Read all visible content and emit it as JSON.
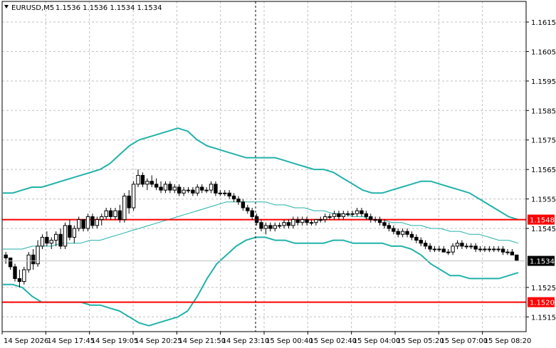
{
  "colors": {
    "background": "#ffffff",
    "grid": "#c0c0c0",
    "frame": "#000000",
    "bollinger": "#20b2aa",
    "hline": "#ff0000",
    "candle": "#000000",
    "current_price_bg": "#000000"
  },
  "header": {
    "symbol_timeframe": "EURUSD,M5",
    "ohlc": "1.1536 1.1536 1.1534 1.1534",
    "collapse_icon": "triangle-down-icon"
  },
  "chart_data": {
    "type": "candlestick",
    "symbol": "EURUSD",
    "timeframe": "M5",
    "ylim": [
      1.151,
      1.1622
    ],
    "y_ticks": [
      "1.1615",
      "1.1605",
      "1.1595",
      "1.1585",
      "1.1575",
      "1.1565",
      "1.1555",
      "1.1545",
      "1.1525",
      "1.1515"
    ],
    "x_ticks": [
      "14 Sep 2026",
      "14 Sep 17:45",
      "14 Sep 19:05",
      "14 Sep 20:25",
      "14 Sep 21:50",
      "14 Sep 23:10",
      "15 Sep 00:40",
      "15 Sep 02:40",
      "15 Sep 04:00",
      "15 Sep 05:20",
      "15 Sep 07:00",
      "15 Sep 08:20"
    ],
    "grid": true,
    "crosshair_x_index": 12,
    "horizontal_lines": [
      {
        "label": "1.1548",
        "value": 1.1548
      },
      {
        "label": "1.1520",
        "value": 1.152
      }
    ],
    "current_price": {
      "label": "1.1534",
      "value": 1.1534
    },
    "bollinger": {
      "upper": [
        1.1557,
        1.1557,
        1.1558,
        1.1559,
        1.1559,
        1.156,
        1.1561,
        1.1562,
        1.1563,
        1.1564,
        1.1565,
        1.1567,
        1.157,
        1.1573,
        1.1575,
        1.1576,
        1.1577,
        1.1578,
        1.1579,
        1.1578,
        1.1575,
        1.1573,
        1.1572,
        1.1571,
        1.157,
        1.1569,
        1.1569,
        1.1569,
        1.1569,
        1.1568,
        1.1567,
        1.1566,
        1.1565,
        1.1565,
        1.1564,
        1.1562,
        1.156,
        1.1558,
        1.1557,
        1.1557,
        1.1558,
        1.1559,
        1.156,
        1.1561,
        1.1561,
        1.156,
        1.1559,
        1.1558,
        1.1557,
        1.1555,
        1.1553,
        1.1551,
        1.1549,
        1.1548
      ],
      "middle": [
        1.1538,
        1.1538,
        1.1538,
        1.1539,
        1.1539,
        1.1539,
        1.154,
        1.154,
        1.154,
        1.1541,
        1.1541,
        1.1542,
        1.1543,
        1.1544,
        1.1545,
        1.1546,
        1.1547,
        1.1548,
        1.1549,
        1.155,
        1.1551,
        1.1552,
        1.1553,
        1.1554,
        1.1554,
        1.1554,
        1.1554,
        1.1554,
        1.1553,
        1.1553,
        1.1552,
        1.1552,
        1.1551,
        1.1551,
        1.155,
        1.155,
        1.1549,
        1.1549,
        1.1548,
        1.1548,
        1.1547,
        1.1547,
        1.1546,
        1.1546,
        1.1545,
        1.1545,
        1.1544,
        1.1544,
        1.1543,
        1.1543,
        1.1542,
        1.1541,
        1.1541,
        1.154
      ],
      "lower": [
        1.1526,
        1.1526,
        1.1525,
        1.1522,
        1.152,
        1.152,
        1.152,
        1.152,
        1.152,
        1.1519,
        1.1519,
        1.1518,
        1.1517,
        1.1515,
        1.1513,
        1.1512,
        1.1513,
        1.1514,
        1.1515,
        1.1517,
        1.1522,
        1.1528,
        1.1533,
        1.1536,
        1.1539,
        1.1541,
        1.1542,
        1.1542,
        1.1541,
        1.1541,
        1.154,
        1.154,
        1.154,
        1.154,
        1.1541,
        1.1541,
        1.154,
        1.154,
        1.154,
        1.154,
        1.1539,
        1.1539,
        1.1538,
        1.1536,
        1.1533,
        1.1531,
        1.1529,
        1.1529,
        1.1528,
        1.1528,
        1.1528,
        1.1528,
        1.1529,
        1.153
      ],
      "x_start_index": 0
    },
    "candles": [
      [
        1.1536,
        1.1537,
        1.1533,
        1.1535
      ],
      [
        1.1535,
        1.1535,
        1.1531,
        1.1532
      ],
      [
        1.1532,
        1.1533,
        1.1527,
        1.1528
      ],
      [
        1.1528,
        1.1531,
        1.1525,
        1.1527
      ],
      [
        1.1527,
        1.1532,
        1.1526,
        1.1531
      ],
      [
        1.1531,
        1.1537,
        1.153,
        1.1536
      ],
      [
        1.1536,
        1.1538,
        1.1531,
        1.1533
      ],
      [
        1.1533,
        1.1541,
        1.1532,
        1.1539
      ],
      [
        1.1539,
        1.1543,
        1.1538,
        1.1542
      ],
      [
        1.1542,
        1.1544,
        1.1539,
        1.154
      ],
      [
        1.154,
        1.1542,
        1.1538,
        1.1541
      ],
      [
        1.1541,
        1.1544,
        1.1539,
        1.1543
      ],
      [
        1.1543,
        1.1545,
        1.1538,
        1.1539
      ],
      [
        1.1539,
        1.1547,
        1.1538,
        1.1546
      ],
      [
        1.1546,
        1.1548,
        1.1541,
        1.1542
      ],
      [
        1.1542,
        1.1546,
        1.154,
        1.1545
      ],
      [
        1.1545,
        1.1549,
        1.1544,
        1.1548
      ],
      [
        1.1548,
        1.1548,
        1.1544,
        1.1545
      ],
      [
        1.1545,
        1.155,
        1.1544,
        1.1549
      ],
      [
        1.1549,
        1.155,
        1.1545,
        1.1546
      ],
      [
        1.1546,
        1.1549,
        1.1545,
        1.1548
      ],
      [
        1.1548,
        1.155,
        1.1546,
        1.1549
      ],
      [
        1.1549,
        1.1552,
        1.1548,
        1.1551
      ],
      [
        1.1551,
        1.1552,
        1.1548,
        1.1549
      ],
      [
        1.1549,
        1.1552,
        1.1548,
        1.1551
      ],
      [
        1.1551,
        1.1553,
        1.1547,
        1.1548
      ],
      [
        1.1548,
        1.1557,
        1.1547,
        1.1556
      ],
      [
        1.1556,
        1.1558,
        1.155,
        1.1552
      ],
      [
        1.1552,
        1.1561,
        1.1551,
        1.156
      ],
      [
        1.156,
        1.1565,
        1.1559,
        1.1563
      ],
      [
        1.1563,
        1.1564,
        1.1559,
        1.156
      ],
      [
        1.156,
        1.1562,
        1.1558,
        1.1561
      ],
      [
        1.1561,
        1.1563,
        1.1559,
        1.156
      ],
      [
        1.156,
        1.1562,
        1.1558,
        1.1559
      ],
      [
        1.1559,
        1.1561,
        1.1557,
        1.1558
      ],
      [
        1.1558,
        1.1561,
        1.1557,
        1.156
      ],
      [
        1.156,
        1.1561,
        1.1557,
        1.1558
      ],
      [
        1.1558,
        1.156,
        1.1557,
        1.1559
      ],
      [
        1.1559,
        1.156,
        1.1556,
        1.1557
      ],
      [
        1.1557,
        1.1559,
        1.1556,
        1.1558
      ],
      [
        1.1558,
        1.1559,
        1.1557,
        1.1558
      ],
      [
        1.1558,
        1.1559,
        1.1556,
        1.1557
      ],
      [
        1.1557,
        1.156,
        1.1556,
        1.1559
      ],
      [
        1.1559,
        1.156,
        1.1557,
        1.1558
      ],
      [
        1.1558,
        1.1559,
        1.1557,
        1.1558
      ],
      [
        1.1558,
        1.1561,
        1.1557,
        1.156
      ],
      [
        1.156,
        1.1561,
        1.1556,
        1.1557
      ],
      [
        1.1557,
        1.1558,
        1.1556,
        1.1557
      ],
      [
        1.1557,
        1.1558,
        1.1556,
        1.1557
      ],
      [
        1.1557,
        1.1558,
        1.1555,
        1.1556
      ],
      [
        1.1556,
        1.1557,
        1.1554,
        1.1555
      ],
      [
        1.1555,
        1.1556,
        1.1553,
        1.1554
      ],
      [
        1.1554,
        1.1555,
        1.1551,
        1.1552
      ],
      [
        1.1552,
        1.1553,
        1.155,
        1.1551
      ],
      [
        1.1551,
        1.1552,
        1.1548,
        1.1549
      ],
      [
        1.1549,
        1.155,
        1.1546,
        1.1547
      ],
      [
        1.1547,
        1.1548,
        1.1544,
        1.1545
      ],
      [
        1.1545,
        1.1547,
        1.1543,
        1.1546
      ],
      [
        1.1546,
        1.1547,
        1.1544,
        1.1545
      ],
      [
        1.1545,
        1.1547,
        1.1544,
        1.1546
      ],
      [
        1.1546,
        1.1547,
        1.1545,
        1.1546
      ],
      [
        1.1546,
        1.1548,
        1.1545,
        1.1547
      ],
      [
        1.1547,
        1.1548,
        1.1545,
        1.1546
      ],
      [
        1.1546,
        1.1549,
        1.1545,
        1.1548
      ],
      [
        1.1548,
        1.1549,
        1.1546,
        1.1547
      ],
      [
        1.1547,
        1.1549,
        1.1546,
        1.1548
      ],
      [
        1.1548,
        1.1549,
        1.1546,
        1.1547
      ],
      [
        1.1547,
        1.1548,
        1.1546,
        1.1547
      ],
      [
        1.1547,
        1.1548,
        1.1546,
        1.1548
      ],
      [
        1.1548,
        1.1549,
        1.1547,
        1.1548
      ],
      [
        1.1548,
        1.155,
        1.1547,
        1.1549
      ],
      [
        1.1549,
        1.155,
        1.1548,
        1.1549
      ],
      [
        1.1549,
        1.1551,
        1.1548,
        1.155
      ],
      [
        1.155,
        1.1551,
        1.1548,
        1.1549
      ],
      [
        1.1549,
        1.1551,
        1.1548,
        1.155
      ],
      [
        1.155,
        1.1551,
        1.1549,
        1.155
      ],
      [
        1.155,
        1.1551,
        1.1549,
        1.155
      ],
      [
        1.155,
        1.1552,
        1.1549,
        1.1551
      ],
      [
        1.1551,
        1.1552,
        1.1549,
        1.155
      ],
      [
        1.155,
        1.1551,
        1.1548,
        1.1549
      ],
      [
        1.1549,
        1.155,
        1.1547,
        1.1548
      ],
      [
        1.1548,
        1.1549,
        1.1547,
        1.1548
      ],
      [
        1.1548,
        1.1549,
        1.1546,
        1.1547
      ],
      [
        1.1547,
        1.1548,
        1.1545,
        1.1546
      ],
      [
        1.1546,
        1.1547,
        1.1544,
        1.1545
      ],
      [
        1.1545,
        1.1546,
        1.1543,
        1.1544
      ],
      [
        1.1544,
        1.1545,
        1.1542,
        1.1543
      ],
      [
        1.1543,
        1.1545,
        1.1542,
        1.1544
      ],
      [
        1.1544,
        1.1545,
        1.1542,
        1.1543
      ],
      [
        1.1543,
        1.1544,
        1.1541,
        1.1542
      ],
      [
        1.1542,
        1.1543,
        1.154,
        1.1541
      ],
      [
        1.1541,
        1.1542,
        1.1539,
        1.154
      ],
      [
        1.154,
        1.1541,
        1.1538,
        1.1539
      ],
      [
        1.1539,
        1.154,
        1.1537,
        1.1538
      ],
      [
        1.1538,
        1.1539,
        1.1537,
        1.1538
      ],
      [
        1.1538,
        1.1539,
        1.1537,
        1.1538
      ],
      [
        1.1538,
        1.1539,
        1.1537,
        1.1537
      ],
      [
        1.1537,
        1.1538,
        1.1536,
        1.1537
      ],
      [
        1.1537,
        1.154,
        1.1536,
        1.1539
      ],
      [
        1.1539,
        1.1541,
        1.1538,
        1.154
      ],
      [
        1.154,
        1.1541,
        1.1538,
        1.1539
      ],
      [
        1.1539,
        1.154,
        1.1538,
        1.1539
      ],
      [
        1.1539,
        1.154,
        1.1538,
        1.1539
      ],
      [
        1.1539,
        1.154,
        1.1537,
        1.1538
      ],
      [
        1.1538,
        1.1539,
        1.1537,
        1.1538
      ],
      [
        1.1538,
        1.1539,
        1.1537,
        1.1538
      ],
      [
        1.1538,
        1.1539,
        1.1537,
        1.1538
      ],
      [
        1.1538,
        1.1539,
        1.1537,
        1.1538
      ],
      [
        1.1538,
        1.1539,
        1.1537,
        1.1538
      ],
      [
        1.1538,
        1.1539,
        1.1536,
        1.1537
      ],
      [
        1.1537,
        1.1538,
        1.1536,
        1.1537
      ],
      [
        1.1537,
        1.1538,
        1.1536,
        1.1536
      ],
      [
        1.1536,
        1.1536,
        1.1534,
        1.1534
      ]
    ]
  }
}
